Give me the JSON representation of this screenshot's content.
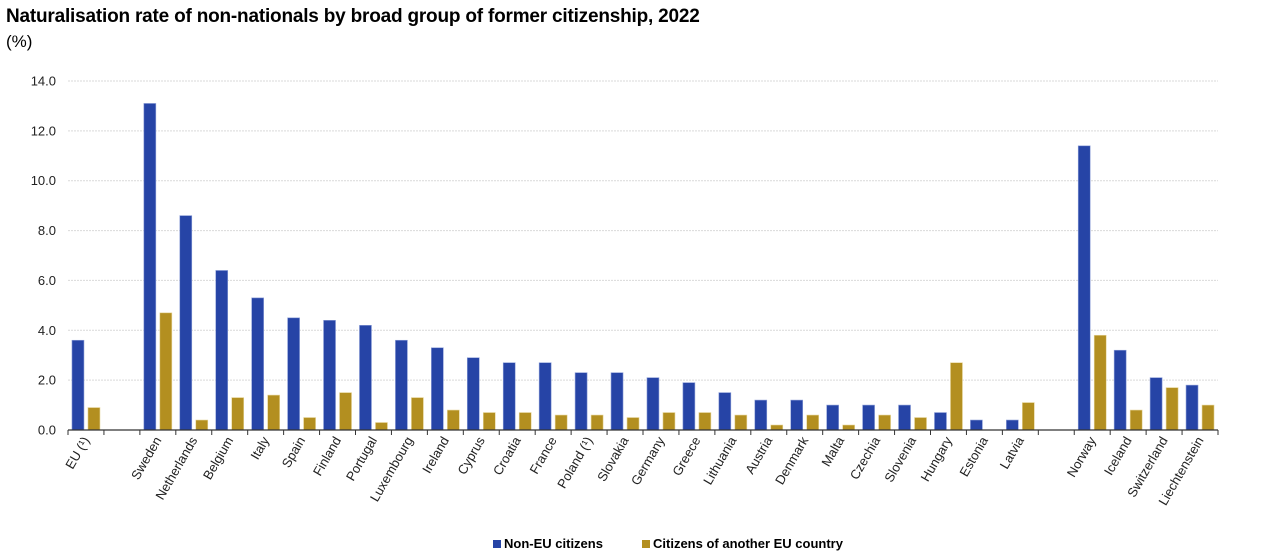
{
  "chart_data": {
    "type": "bar",
    "title": "Naturalisation rate of non-nationals by broad group of former citizenship, 2022",
    "subtitle": "(%)",
    "xlabel": "",
    "ylabel": "",
    "ylim": [
      0,
      14
    ],
    "yticks": [
      "0.0",
      "2.0",
      "4.0",
      "6.0",
      "8.0",
      "10.0",
      "12.0",
      "14.0"
    ],
    "ytick_values": [
      0,
      2,
      4,
      6,
      8,
      10,
      12,
      14
    ],
    "grid": true,
    "legend_position": "bottom-center",
    "categories": [
      "EU (¹)",
      "",
      "Sweden",
      "Netherlands",
      "Belgium",
      "Italy",
      "Spain",
      "Finland",
      "Portugal",
      "Luxembourg",
      "Ireland",
      "Cyprus",
      "Croatia",
      "France",
      "Poland (¹)",
      "Slovakia",
      "Germany",
      "Greece",
      "Lithuania",
      "Austria",
      "Denmark",
      "Malta",
      "Czechia",
      "Slovenia",
      "Hungary",
      "Estonia",
      "Latvia",
      "",
      "Norway",
      "Iceland",
      "Switzerland",
      "Liechtenstein"
    ],
    "series": [
      {
        "name": "Non-EU citizens",
        "color": "#2644a6",
        "values": [
          3.6,
          null,
          13.1,
          8.6,
          6.4,
          5.3,
          4.5,
          4.4,
          4.2,
          3.6,
          3.3,
          2.9,
          2.7,
          2.7,
          2.3,
          2.3,
          2.1,
          1.9,
          1.5,
          1.2,
          1.2,
          1.0,
          1.0,
          1.0,
          0.7,
          0.4,
          0.4,
          null,
          11.4,
          3.2,
          2.1,
          1.8
        ]
      },
      {
        "name": "Citizens of another EU country",
        "color": "#b38f20",
        "values": [
          0.9,
          null,
          4.7,
          0.4,
          1.3,
          1.4,
          0.5,
          1.5,
          0.3,
          1.3,
          0.8,
          0.7,
          0.7,
          0.6,
          0.6,
          0.5,
          0.7,
          0.7,
          0.6,
          0.2,
          0.6,
          0.2,
          0.6,
          0.5,
          2.7,
          null,
          1.1,
          null,
          3.8,
          0.8,
          1.7,
          1.0
        ]
      }
    ]
  }
}
